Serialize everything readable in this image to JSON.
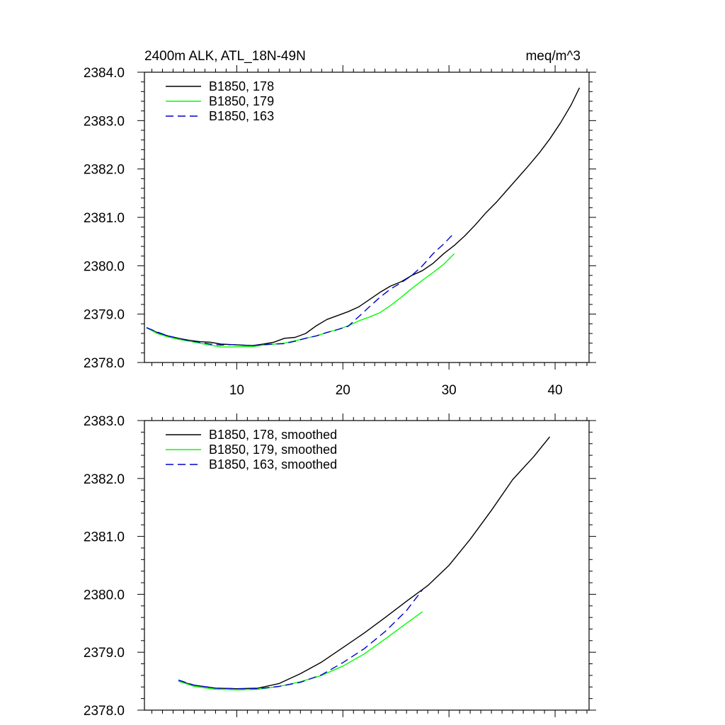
{
  "chart_data": [
    {
      "type": "line",
      "title": "2400m ALK, ATL_18N-49N",
      "units": "meq/m^3",
      "xlim": [
        1.3,
        43.2
      ],
      "ylim": [
        2378.0,
        2384.0
      ],
      "xticks": [
        10,
        20,
        30,
        40
      ],
      "xtick_labels": [
        "10",
        "20",
        "30",
        "40"
      ],
      "xlabels_shown": true,
      "yticks": [
        2378.0,
        2379.0,
        2380.0,
        2381.0,
        2382.0,
        2383.0,
        2384.0
      ],
      "ytick_labels": [
        "2378.0",
        "2379.0",
        "2380.0",
        "2381.0",
        "2382.0",
        "2383.0",
        "2384.0"
      ],
      "legend_position": "top-left",
      "series": [
        {
          "name": "B1850, 178",
          "color": "#000000",
          "dash": "solid",
          "x": [
            1.5,
            2.5,
            3.5,
            4.5,
            5.5,
            6.5,
            7.5,
            8.5,
            9.5,
            10.5,
            11.5,
            12.5,
            13.5,
            14.5,
            15.5,
            16.5,
            17.5,
            18.5,
            19.5,
            20.5,
            21.5,
            22.5,
            23.5,
            24.5,
            25.5,
            26.5,
            27.5,
            28.5,
            29.5,
            30.5,
            31.5,
            32.5,
            33.5,
            34.5,
            35.5,
            36.5,
            37.5,
            38.5,
            39.5,
            40.5,
            41.5,
            42.3
          ],
          "y": [
            2378.72,
            2378.62,
            2378.55,
            2378.5,
            2378.46,
            2378.43,
            2378.42,
            2378.38,
            2378.37,
            2378.36,
            2378.35,
            2378.38,
            2378.42,
            2378.5,
            2378.52,
            2378.6,
            2378.76,
            2378.89,
            2378.97,
            2379.05,
            2379.15,
            2379.3,
            2379.45,
            2379.58,
            2379.67,
            2379.8,
            2379.9,
            2380.05,
            2380.25,
            2380.42,
            2380.62,
            2380.85,
            2381.1,
            2381.32,
            2381.57,
            2381.82,
            2382.07,
            2382.33,
            2382.62,
            2382.95,
            2383.32,
            2383.68
          ]
        },
        {
          "name": "B1850, 179",
          "color": "#00ff00",
          "dash": "solid",
          "x": [
            1.5,
            2.5,
            3.5,
            4.5,
            5.5,
            6.5,
            7.5,
            8.5,
            9.5,
            10.5,
            11.5,
            12.5,
            13.5,
            14.5,
            15.5,
            16.5,
            17.5,
            18.5,
            19.5,
            20.5,
            21.5,
            22.5,
            23.5,
            24.5,
            25.5,
            26.5,
            27.5,
            28.5,
            29.5,
            30.5
          ],
          "y": [
            2378.72,
            2378.6,
            2378.53,
            2378.48,
            2378.44,
            2378.4,
            2378.36,
            2378.32,
            2378.32,
            2378.33,
            2378.33,
            2378.36,
            2378.38,
            2378.4,
            2378.45,
            2378.5,
            2378.55,
            2378.62,
            2378.68,
            2378.76,
            2378.86,
            2378.94,
            2379.03,
            2379.18,
            2379.35,
            2379.53,
            2379.7,
            2379.86,
            2380.03,
            2380.25
          ]
        },
        {
          "name": "B1850, 163",
          "color": "#0000cc",
          "dash": "dashed",
          "x": [
            1.5,
            2.5,
            3.5,
            4.5,
            5.5,
            6.5,
            7.5,
            8.5,
            9.5,
            10.5,
            11.5,
            12.5,
            13.5,
            14.5,
            15.5,
            16.5,
            17.5,
            18.5,
            19.5,
            20.5,
            21.5,
            22.5,
            23.5,
            24.5,
            25.5,
            26.5,
            27.5,
            28.5,
            29.5,
            30.5
          ],
          "y": [
            2378.72,
            2378.63,
            2378.55,
            2378.5,
            2378.45,
            2378.42,
            2378.38,
            2378.36,
            2378.37,
            2378.36,
            2378.35,
            2378.37,
            2378.38,
            2378.39,
            2378.44,
            2378.5,
            2378.55,
            2378.62,
            2378.68,
            2378.75,
            2378.95,
            2379.15,
            2379.35,
            2379.52,
            2379.65,
            2379.8,
            2380.0,
            2380.25,
            2380.45,
            2380.68
          ]
        }
      ]
    },
    {
      "type": "line",
      "xlim": [
        1.3,
        43.2
      ],
      "ylim": [
        2378.0,
        2383.0
      ],
      "xticks": [
        10,
        20,
        30,
        40
      ],
      "xtick_labels": [
        "10",
        "20",
        "30",
        "40"
      ],
      "xlabels_shown": false,
      "yticks": [
        2378.0,
        2379.0,
        2380.0,
        2381.0,
        2382.0,
        2383.0
      ],
      "ytick_labels": [
        "2378.0",
        "2379.0",
        "2380.0",
        "2381.0",
        "2382.0",
        "2383.0"
      ],
      "legend_position": "top-left",
      "series": [
        {
          "name": "B1850, 178, smoothed",
          "color": "#000000",
          "dash": "solid",
          "x": [
            4.5,
            6,
            8,
            10,
            12,
            14,
            16,
            18,
            20,
            22,
            24,
            26,
            28,
            30,
            32,
            34,
            36,
            38,
            39.5
          ],
          "y": [
            2378.5,
            2378.43,
            2378.38,
            2378.37,
            2378.38,
            2378.46,
            2378.63,
            2378.83,
            2379.08,
            2379.33,
            2379.6,
            2379.88,
            2380.15,
            2380.5,
            2380.95,
            2381.45,
            2381.98,
            2382.38,
            2382.72
          ]
        },
        {
          "name": "B1850, 179, smoothed",
          "color": "#00ff00",
          "dash": "solid",
          "x": [
            4.5,
            6,
            8,
            10,
            12,
            14,
            16,
            18,
            20,
            22,
            24,
            26,
            27.5
          ],
          "y": [
            2378.5,
            2378.41,
            2378.36,
            2378.35,
            2378.36,
            2378.41,
            2378.49,
            2378.6,
            2378.76,
            2378.97,
            2379.23,
            2379.5,
            2379.7
          ]
        },
        {
          "name": "B1850, 163, smoothed",
          "color": "#0000cc",
          "dash": "dashed",
          "x": [
            4.5,
            6,
            8,
            10,
            12,
            14,
            16,
            18,
            20,
            22,
            24,
            26,
            27.5
          ],
          "y": [
            2378.52,
            2378.43,
            2378.38,
            2378.37,
            2378.37,
            2378.41,
            2378.48,
            2378.61,
            2378.82,
            2379.06,
            2379.36,
            2379.72,
            2380.08
          ]
        }
      ]
    }
  ]
}
